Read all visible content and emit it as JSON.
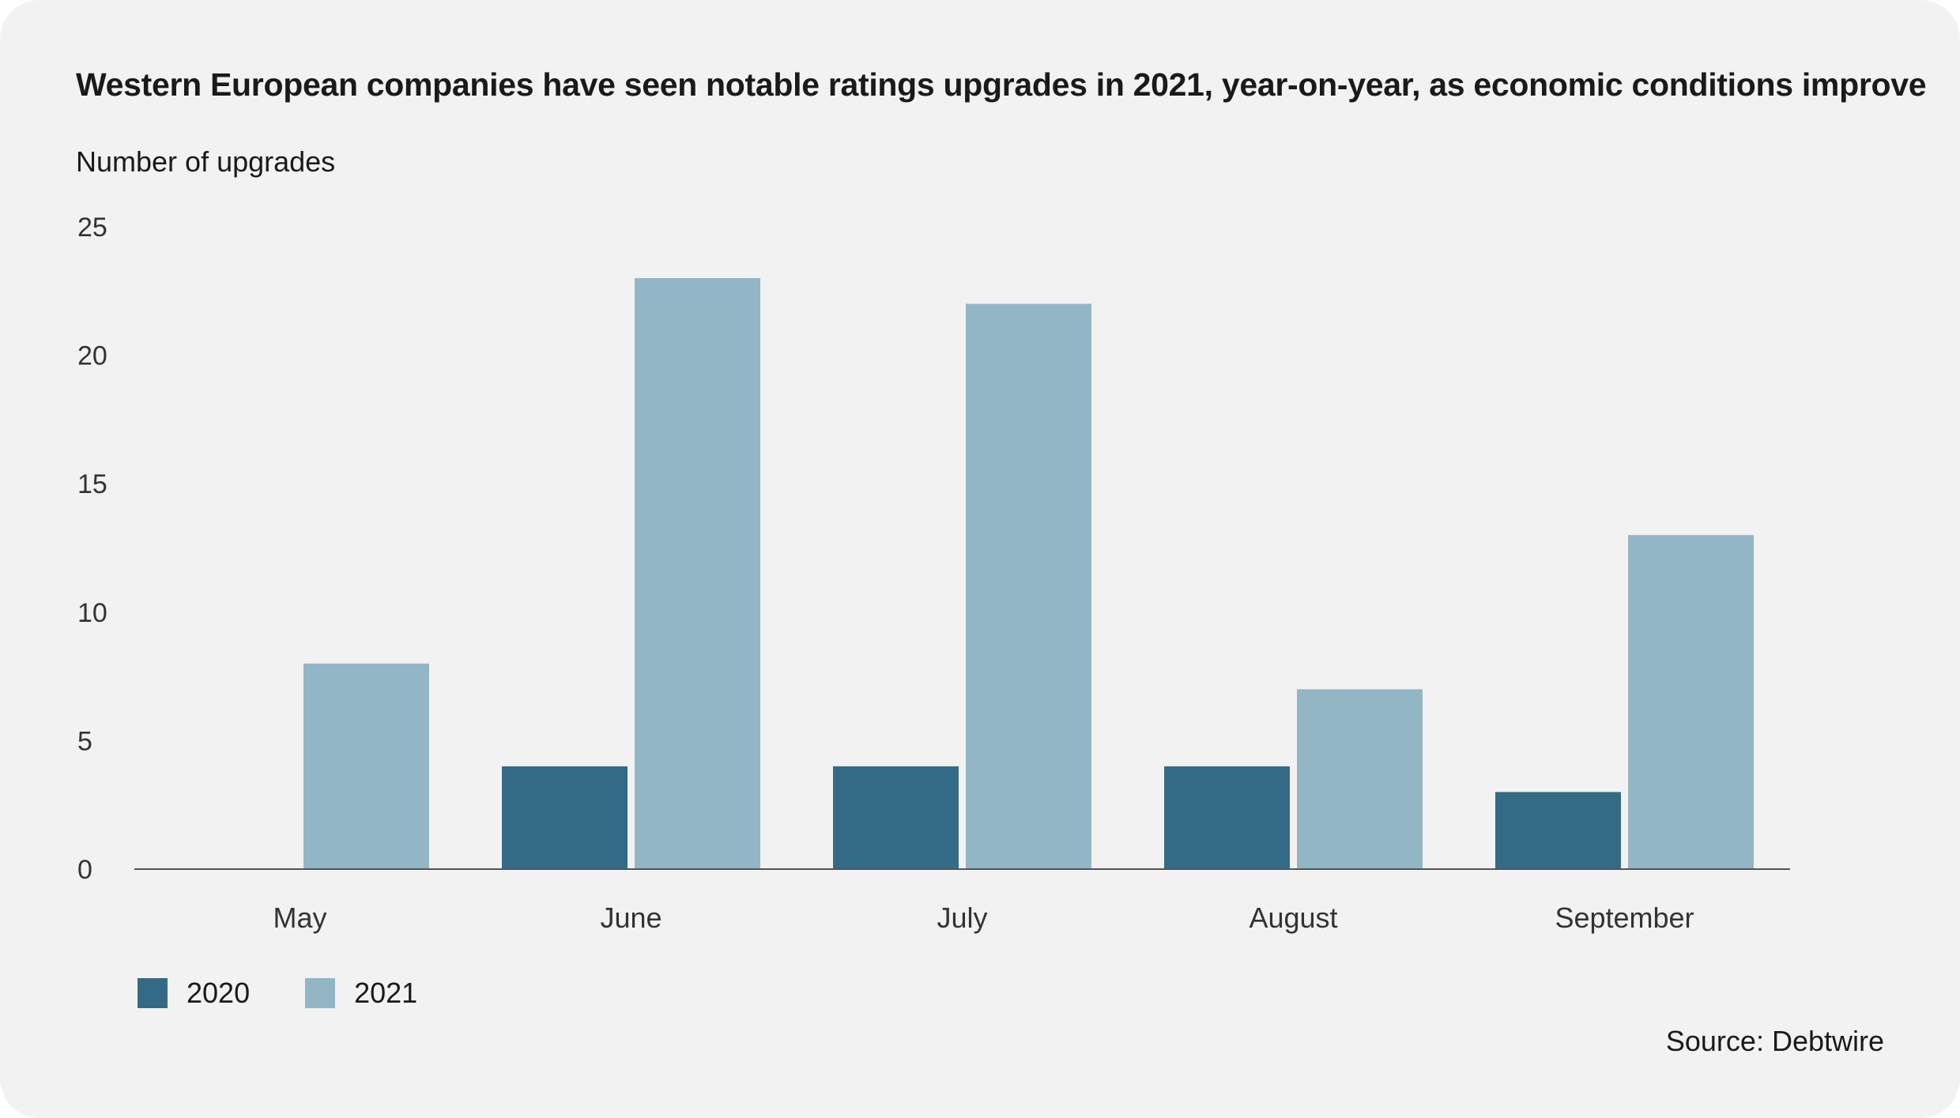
{
  "colors": {
    "background": "#f2f2f2",
    "series_2020": "#336b87",
    "series_2021": "#92b6c6",
    "axis": "#555555"
  },
  "chart_data": {
    "type": "bar",
    "title": "Western European companies have seen notable ratings upgrades in 2021, year-on-year, as economic conditions improve",
    "ylabel": "Number of upgrades",
    "xlabel": "",
    "categories": [
      "May",
      "June",
      "July",
      "August",
      "September"
    ],
    "series": [
      {
        "name": "2020",
        "color": "#336b87",
        "values": [
          0,
          4,
          4,
          4,
          3
        ]
      },
      {
        "name": "2021",
        "color": "#92b6c6",
        "values": [
          8,
          23,
          22,
          7,
          13
        ]
      }
    ],
    "ylim": [
      0,
      25
    ],
    "yticks": [
      0,
      5,
      10,
      15,
      20,
      25
    ],
    "grid": false,
    "legend_position": "bottom-left",
    "source": "Source: Debtwire"
  }
}
